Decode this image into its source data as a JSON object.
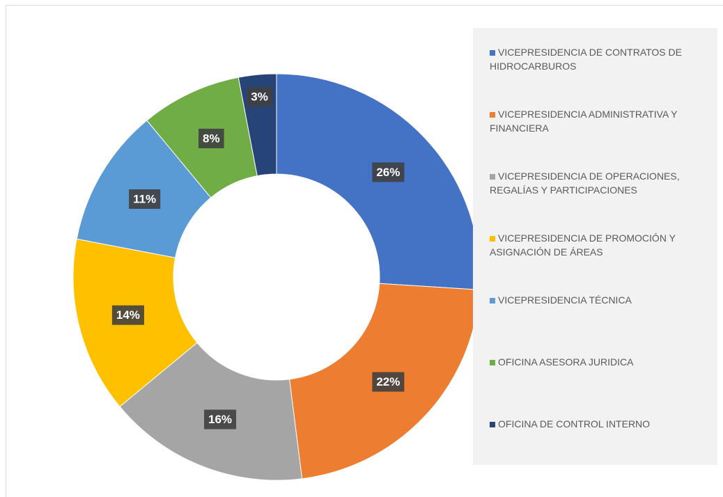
{
  "chart_data": {
    "type": "pie",
    "categories": [
      "VICEPRESIDENCIA DE CONTRATOS DE HIDROCARBUROS",
      "VICEPRESIDENCIA ADMINISTRATIVA Y FINANCIERA",
      "VICEPRESIDENCIA DE OPERACIONES, REGALÍAS Y PARTICIPACIONES",
      "VICEPRESIDENCIA DE PROMOCIÓN Y ASIGNACIÓN DE ÁREAS",
      "VICEPRESIDENCIA TÉCNICA",
      "OFICINA ASESORA JURIDICA",
      "OFICINA DE CONTROL INTERNO"
    ],
    "values": [
      26,
      22,
      16,
      14,
      11,
      8,
      3
    ],
    "value_labels": [
      "26%",
      "22%",
      "16%",
      "14%",
      "11%",
      "8%",
      "3%"
    ],
    "colors": [
      "#4472c4",
      "#ed7d31",
      "#a5a5a5",
      "#ffc000",
      "#5b9bd5",
      "#70ad47",
      "#264478"
    ],
    "legend": "right"
  }
}
